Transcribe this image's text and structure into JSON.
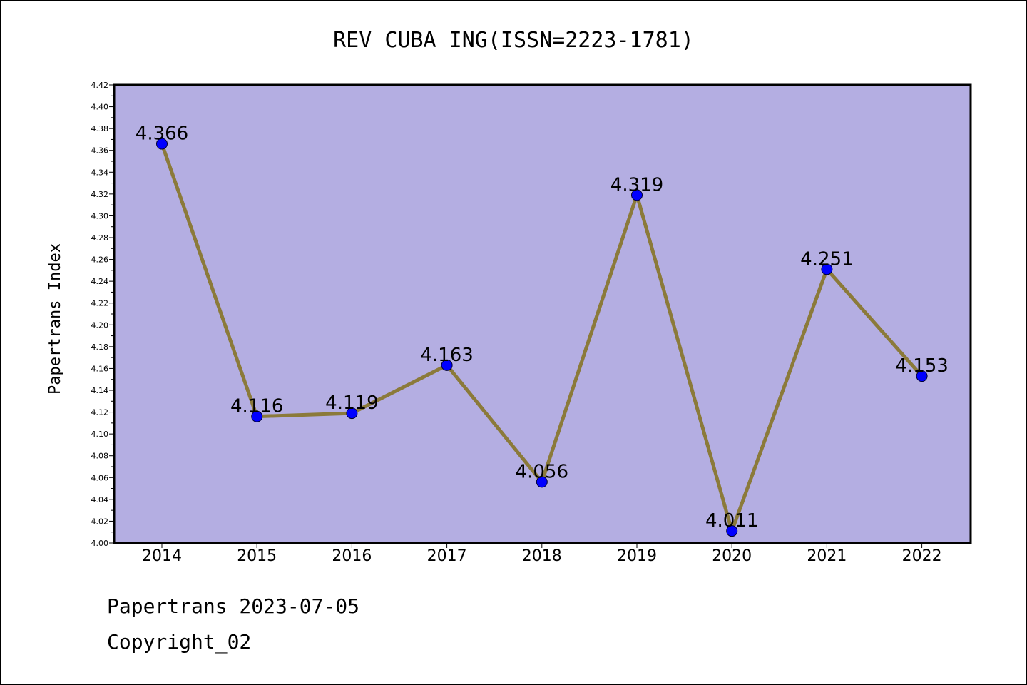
{
  "chart_data": {
    "type": "line",
    "title": "REV CUBA ING(ISSN=2223-1781)",
    "xlabel": "",
    "ylabel": "Papertrans Index",
    "categories": [
      "2014",
      "2015",
      "2016",
      "2017",
      "2018",
      "2019",
      "2020",
      "2021",
      "2022"
    ],
    "values": [
      4.366,
      4.116,
      4.119,
      4.163,
      4.056,
      4.319,
      4.011,
      4.251,
      4.153
    ],
    "data_labels": [
      "4.366",
      "4.116",
      "4.119",
      "4.163",
      "4.056",
      "4.319",
      "4.011",
      "4.251",
      "4.153"
    ],
    "ylim": [
      4.0,
      4.42
    ],
    "yticks": [
      "4.00",
      "4.02",
      "4.04",
      "4.06",
      "4.08",
      "4.10",
      "4.12",
      "4.14",
      "4.16",
      "4.18",
      "4.20",
      "4.22",
      "4.24",
      "4.26",
      "4.28",
      "4.30",
      "4.32",
      "4.34",
      "4.36",
      "4.38",
      "4.40",
      "4.42"
    ],
    "grid": false,
    "legend": "none",
    "colors": {
      "plot_background": "#b4aee2",
      "line": "#8b7a3a",
      "marker": "#0000ff"
    }
  },
  "footer": {
    "line1": "Papertrans 2023-07-05",
    "line2": "Copyright_02"
  }
}
